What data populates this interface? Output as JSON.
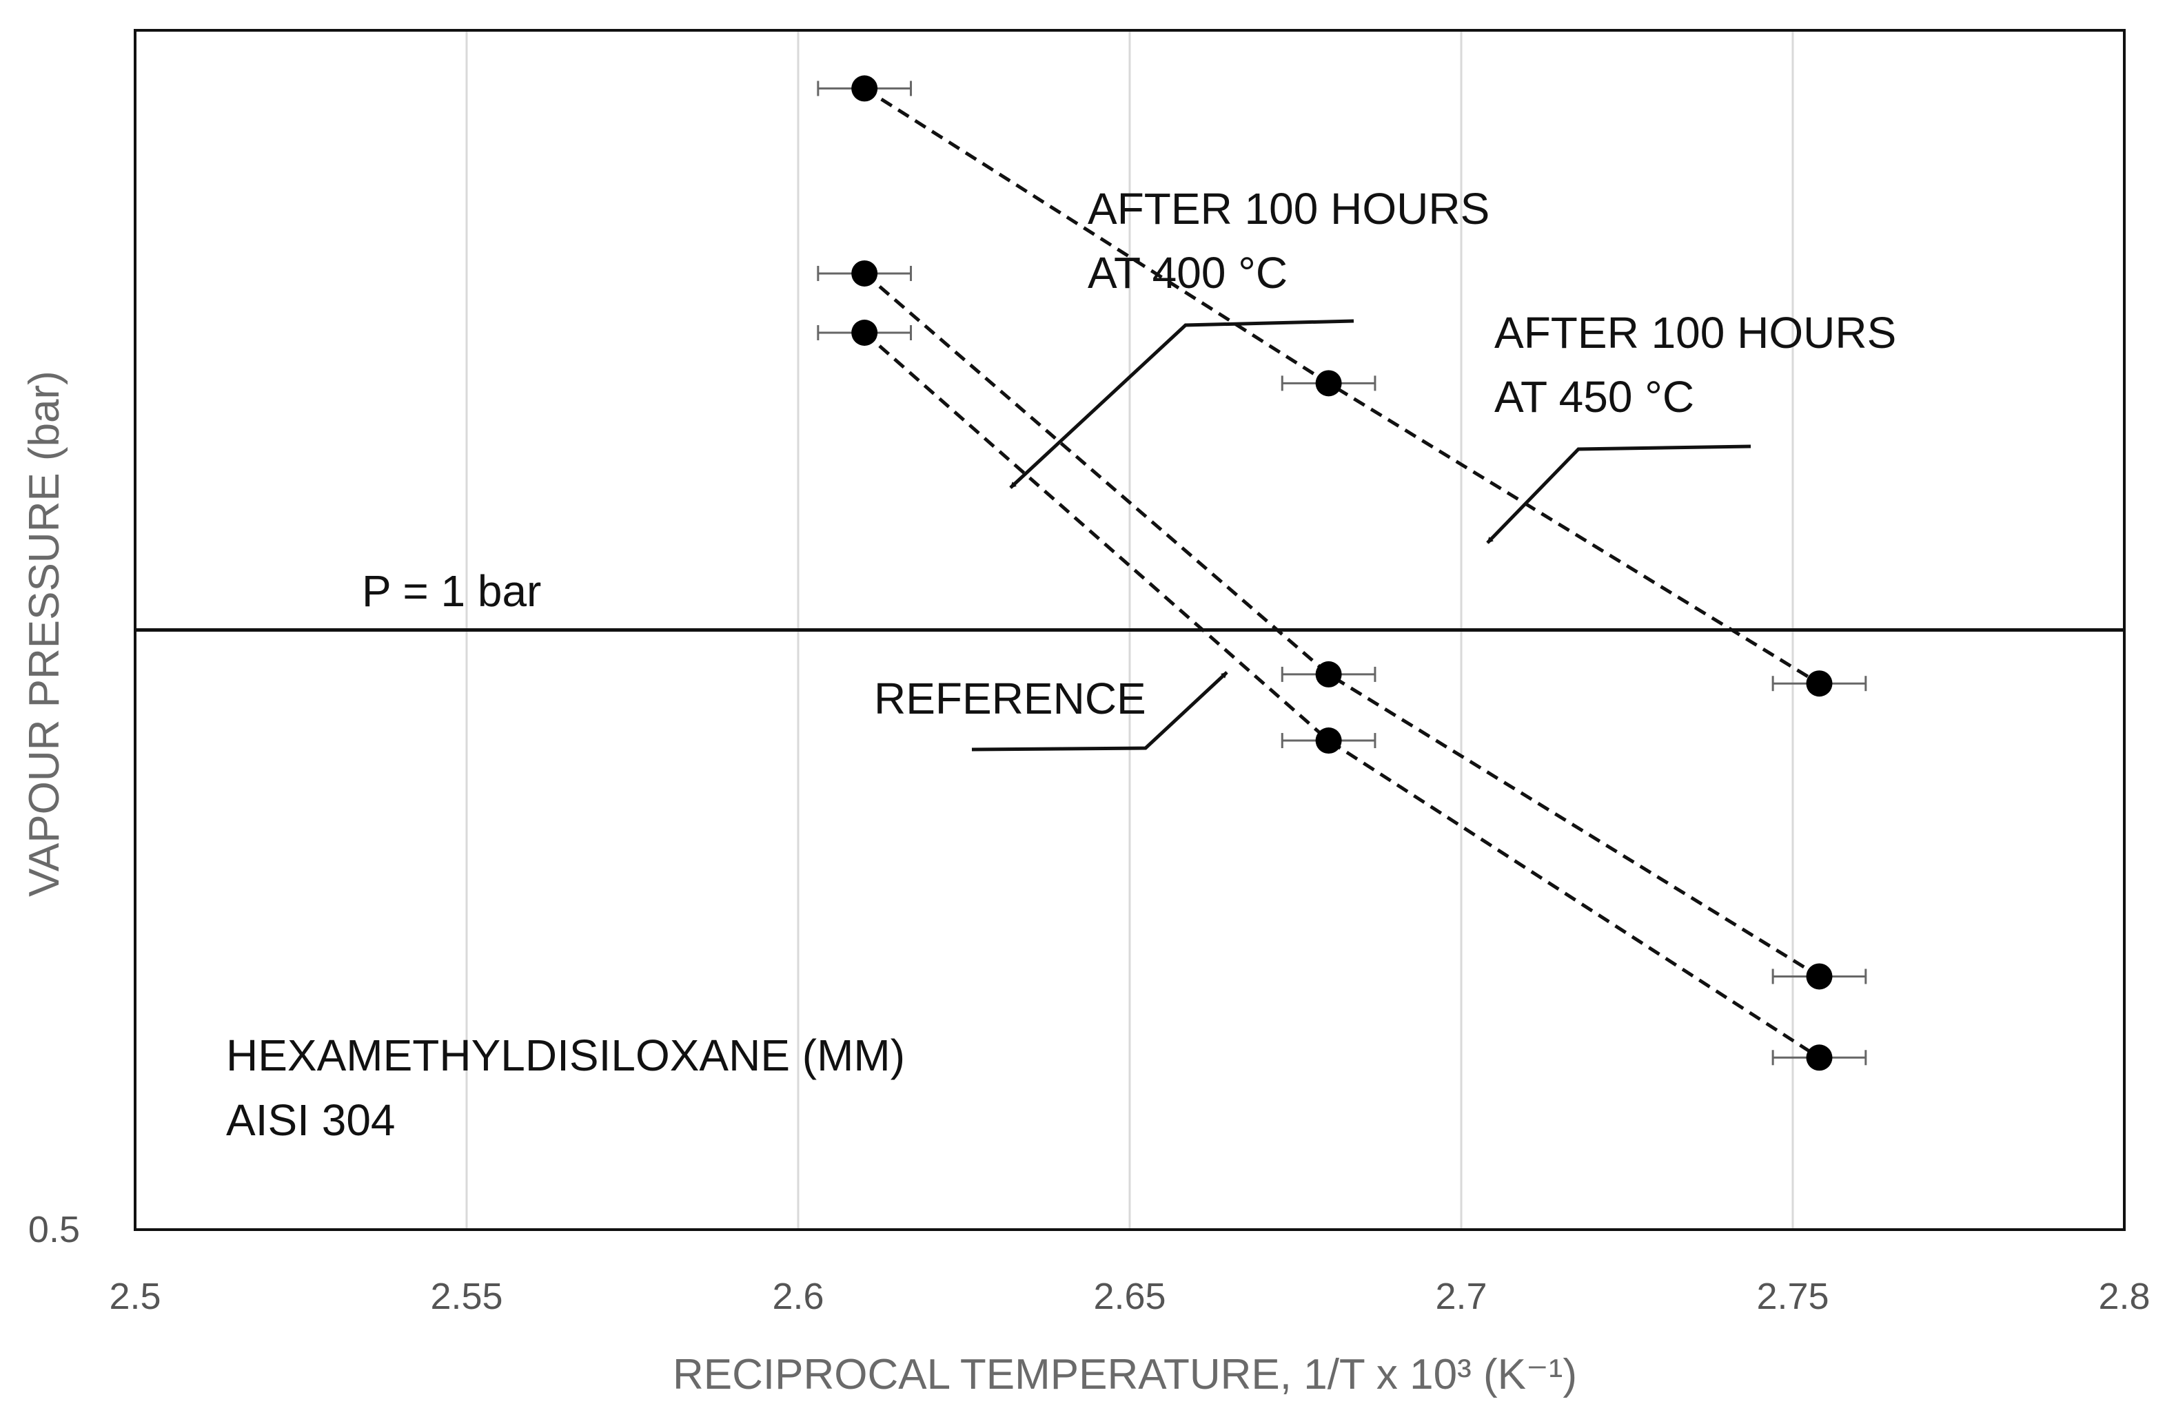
{
  "chart_data": {
    "type": "scatter",
    "title": "",
    "xlabel": "RECIPROCAL TEMPERATURE, 1/T x 10³ (K⁻¹)",
    "ylabel": "VAPOUR PRESSURE (bar)",
    "yscale": "log",
    "xlim": [
      2.5,
      2.8
    ],
    "ylim": [
      0.5,
      2.0
    ],
    "x_ticks": [
      "2.5",
      "2.55",
      "2.6",
      "2.65",
      "2.7",
      "2.75",
      "2.8"
    ],
    "y_ticks": [
      "0.5"
    ],
    "grid": true,
    "x_error": 0.007,
    "series": [
      {
        "name": "AFTER 100 HOURS AT 450 °C",
        "x": [
          2.61,
          2.68,
          2.754
        ],
        "y": [
          1.87,
          1.33,
          0.94
        ]
      },
      {
        "name": "AFTER 100 HOURS AT 400 °C",
        "x": [
          2.61,
          2.68,
          2.754
        ],
        "y": [
          1.51,
          0.95,
          0.67
        ]
      },
      {
        "name": "REFERENCE",
        "x": [
          2.61,
          2.68,
          2.754
        ],
        "y": [
          1.41,
          0.88,
          0.61
        ]
      }
    ],
    "reference_line": {
      "y": 1.0,
      "label": "P = 1 bar"
    },
    "annotations": {
      "series_450": [
        "AFTER 100 HOURS",
        "AT 450 °C"
      ],
      "series_400": [
        "AFTER 100 HOURS",
        "AT 400 °C"
      ],
      "reference": "REFERENCE",
      "fluid": [
        "HEXAMETHYLDISILOXANE (MM)",
        "AISI 304"
      ]
    }
  }
}
